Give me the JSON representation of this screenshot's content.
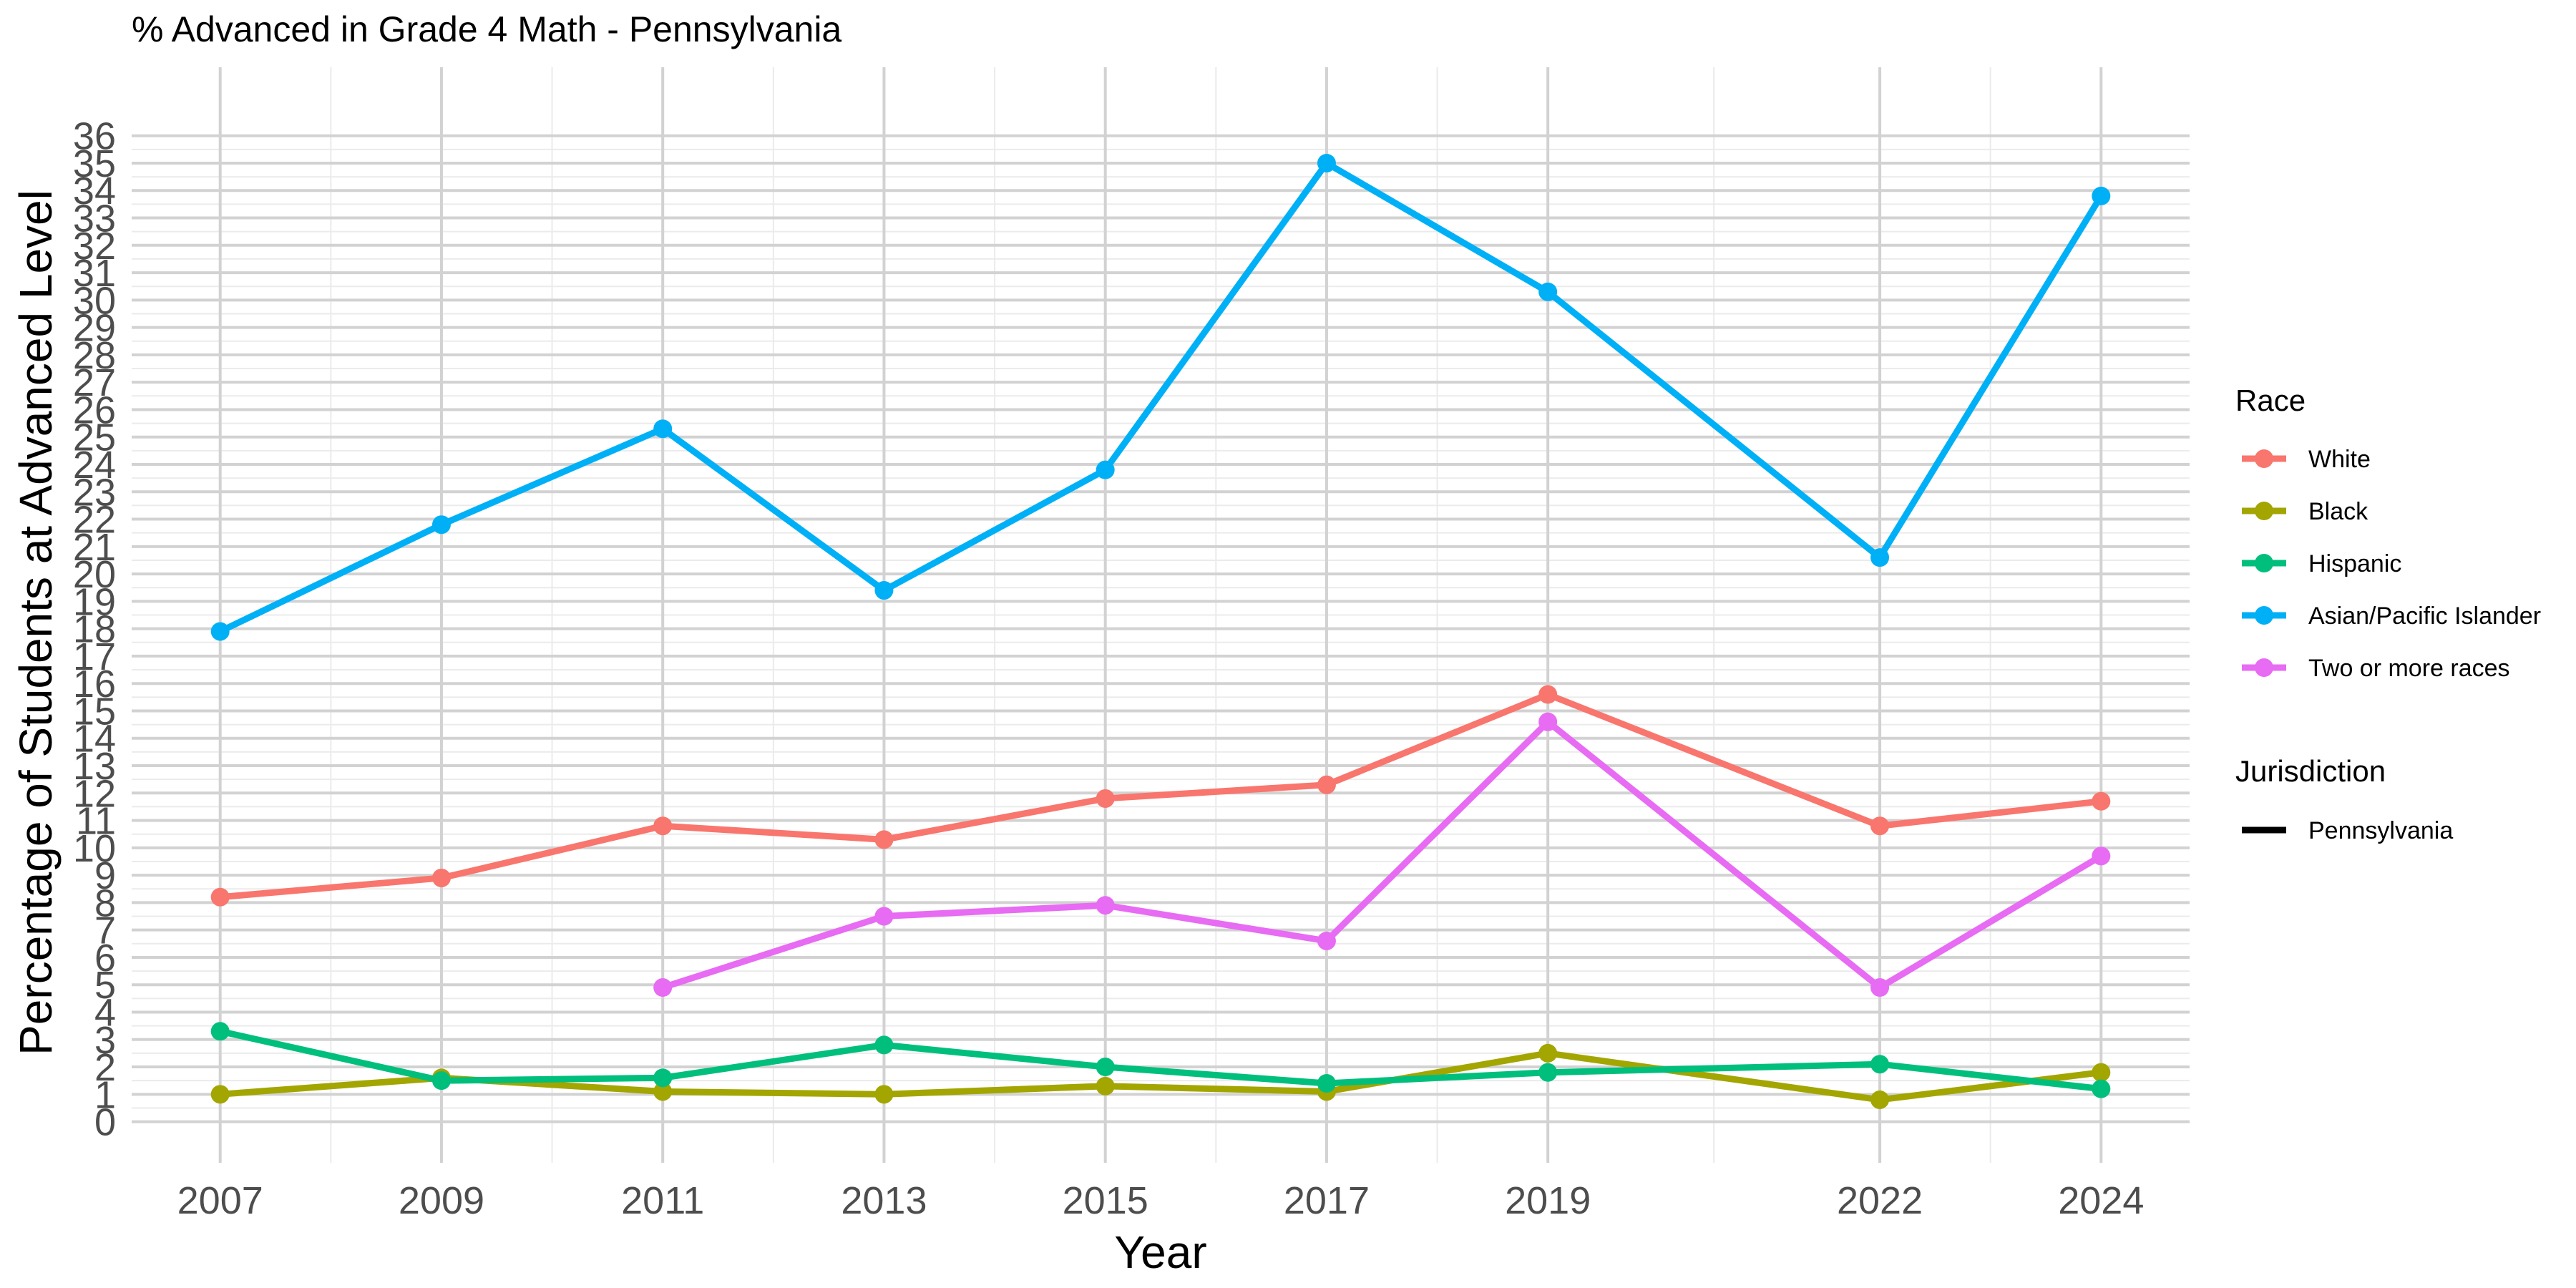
{
  "chart_data": {
    "type": "line",
    "title": "% Advanced in Grade 4 Math - Pennsylvania",
    "xlabel": "Year",
    "ylabel": "Percentage of Students at Advanced Level",
    "x_ticks": [
      "2007",
      "2009",
      "2011",
      "2013",
      "2015",
      "2017",
      "2019",
      "2022",
      "2024"
    ],
    "y_ticks": [
      "0",
      "1",
      "2",
      "3",
      "4",
      "5",
      "6",
      "7",
      "8",
      "9",
      "10",
      "11",
      "12",
      "13",
      "14",
      "15",
      "16",
      "17",
      "18",
      "19",
      "20",
      "21",
      "22",
      "23",
      "24",
      "25",
      "26",
      "27",
      "28",
      "29",
      "30",
      "31",
      "32",
      "33",
      "34",
      "35",
      "36"
    ],
    "xlim": [
      2006.2,
      2024.8
    ],
    "ylim": [
      -1.5,
      38.5
    ],
    "grid": true,
    "legend_position": "right",
    "legend": {
      "race_title": "Race",
      "jurisdiction_title": "Jurisdiction",
      "jurisdiction_entries": [
        "Pennsylvania"
      ]
    },
    "series": [
      {
        "name": "White",
        "color": "#F8766D",
        "points": [
          [
            2007,
            8.2
          ],
          [
            2009,
            8.9
          ],
          [
            2011,
            10.8
          ],
          [
            2013,
            10.3
          ],
          [
            2015,
            11.8
          ],
          [
            2017,
            12.3
          ],
          [
            2019,
            15.6
          ],
          [
            2022,
            10.8
          ],
          [
            2024,
            11.7
          ]
        ]
      },
      {
        "name": "Black",
        "color": "#A3A500",
        "points": [
          [
            2007,
            1.0
          ],
          [
            2009,
            1.6
          ],
          [
            2011,
            1.1
          ],
          [
            2013,
            1.0
          ],
          [
            2015,
            1.3
          ],
          [
            2017,
            1.1
          ],
          [
            2019,
            2.5
          ],
          [
            2022,
            0.8
          ],
          [
            2024,
            1.8
          ]
        ]
      },
      {
        "name": "Hispanic",
        "color": "#00BF7D",
        "points": [
          [
            2007,
            3.3
          ],
          [
            2009,
            1.5
          ],
          [
            2011,
            1.6
          ],
          [
            2013,
            2.8
          ],
          [
            2015,
            2.0
          ],
          [
            2017,
            1.4
          ],
          [
            2019,
            1.8
          ],
          [
            2022,
            2.1
          ],
          [
            2024,
            1.2
          ]
        ]
      },
      {
        "name": "Asian/Pacific Islander",
        "color": "#00B0F6",
        "points": [
          [
            2007,
            17.9
          ],
          [
            2009,
            21.8
          ],
          [
            2011,
            25.3
          ],
          [
            2013,
            19.4
          ],
          [
            2015,
            23.8
          ],
          [
            2017,
            35.0
          ],
          [
            2019,
            30.3
          ],
          [
            2022,
            20.6
          ],
          [
            2024,
            33.8
          ]
        ]
      },
      {
        "name": "Two or more races",
        "color": "#E76BF3",
        "points": [
          [
            2011,
            4.9
          ],
          [
            2013,
            7.5
          ],
          [
            2015,
            7.9
          ],
          [
            2017,
            6.6
          ],
          [
            2019,
            14.6
          ],
          [
            2022,
            4.9
          ],
          [
            2024,
            9.7
          ]
        ]
      }
    ]
  }
}
